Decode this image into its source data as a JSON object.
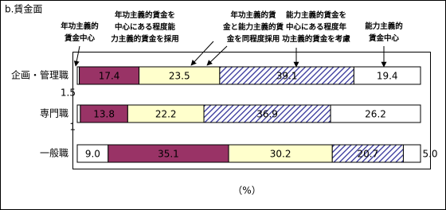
{
  "chart_data": {
    "type": "stacked-barh",
    "title": "b.賃金面",
    "x_label": "（%）",
    "categories": [
      "企画・管理職",
      "専門職",
      "一般職"
    ],
    "xlim": [
      0,
      100
    ],
    "yticks": [
      1.5,
      1.0
    ],
    "series": [
      {
        "name": "年功主義的\n賃金中心",
        "color": "#ffffff",
        "values": [
          0.6,
          0.9,
          9.0
        ],
        "value_labels": [
          null,
          null,
          "9.0"
        ]
      },
      {
        "name": "年功主義的賃金を\n中心にある程度能\n力主義的賃金を採用",
        "color": "#993366",
        "values": [
          17.4,
          13.8,
          35.1
        ]
      },
      {
        "name": "年功主義的賃\n金と能力主義的賃\n金を同程度採用",
        "color": "#ffffcc",
        "values": [
          23.5,
          22.2,
          30.2
        ]
      },
      {
        "name": "能力主義的賃金を\n中心にある程度年\n功主義的賃金を考慮",
        "color": "#333399",
        "pattern": "hatch",
        "values": [
          39.1,
          36.9,
          20.7
        ]
      },
      {
        "name": "能力主義的\n賃金中心",
        "color": "#ffffff",
        "values": [
          19.4,
          26.2,
          5.0
        ],
        "value_labels": [
          "19.4",
          "26.2",
          "5.0"
        ]
      }
    ]
  }
}
